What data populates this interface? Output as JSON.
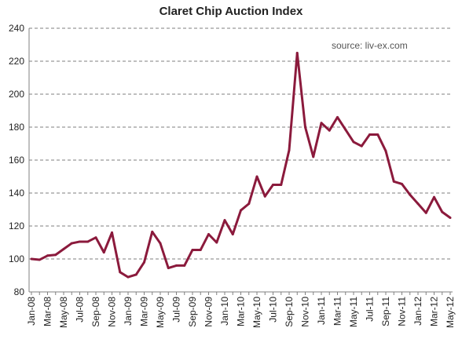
{
  "chart_data": {
    "type": "line",
    "title": "Claret Chip Auction Index",
    "annotation": "source: liv-ex.com",
    "xlabel": "",
    "ylabel": "",
    "ylim": [
      80,
      240
    ],
    "y_ticks": [
      80,
      100,
      120,
      140,
      160,
      180,
      200,
      220,
      240
    ],
    "grid": "horizontal dashed",
    "line_color": "#8b1a3c",
    "x_tick_labels": [
      "Jan-08",
      "Mar-08",
      "May-08",
      "Jul-08",
      "Sep-08",
      "Nov-08",
      "Jan-09",
      "Mar-09",
      "May-09",
      "Jul-09",
      "Sep-09",
      "Nov-09",
      "Jan-10",
      "Mar-10",
      "May-10",
      "Jul-10",
      "Sep-10",
      "Nov-10",
      "Jan-11",
      "Mar-11",
      "May-11",
      "Jul-11",
      "Sep-11",
      "Nov-11",
      "Jan-12",
      "Mar-12",
      "May-12"
    ],
    "x": [
      "Jan-08",
      "Feb-08",
      "Mar-08",
      "Apr-08",
      "May-08",
      "Jun-08",
      "Jul-08",
      "Aug-08",
      "Sep-08",
      "Oct-08",
      "Nov-08",
      "Dec-08",
      "Jan-09",
      "Feb-09",
      "Mar-09",
      "Apr-09",
      "May-09",
      "Jun-09",
      "Jul-09",
      "Aug-09",
      "Sep-09",
      "Oct-09",
      "Nov-09",
      "Dec-09",
      "Jan-10",
      "Feb-10",
      "Mar-10",
      "Apr-10",
      "May-10",
      "Jun-10",
      "Jul-10",
      "Aug-10",
      "Sep-10",
      "Oct-10",
      "Nov-10",
      "Dec-10",
      "Jan-11",
      "Feb-11",
      "Mar-11",
      "Apr-11",
      "May-11",
      "Jun-11",
      "Jul-11",
      "Aug-11",
      "Sep-11",
      "Oct-11",
      "Nov-11",
      "Dec-11",
      "Jan-12",
      "Feb-12",
      "Mar-12",
      "Apr-12",
      "May-12"
    ],
    "series": [
      {
        "values": [
          100,
          99.5,
          102,
          102.5,
          106,
          109.5,
          110.5,
          110.5,
          113,
          104,
          116,
          92,
          89,
          90.5,
          98,
          116.5,
          109.5,
          94.5,
          96,
          96,
          105.5,
          105.5,
          115,
          110,
          123.5,
          115,
          129.5,
          133.5,
          150,
          138,
          145,
          145,
          166,
          225,
          180,
          162,
          182.5,
          178,
          186,
          178.5,
          171,
          168.5,
          175.5,
          175.5,
          165.5,
          147,
          145.5,
          139,
          133.5,
          128,
          137.5,
          128.5,
          125
        ]
      }
    ]
  }
}
